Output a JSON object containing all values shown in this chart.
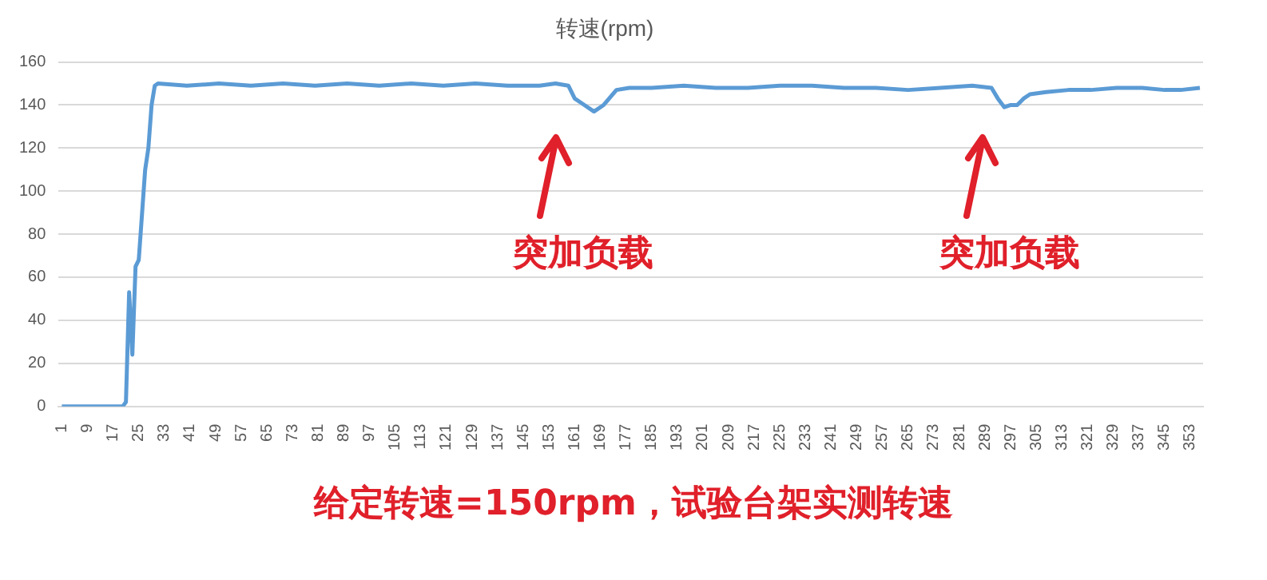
{
  "chart_data": {
    "type": "line",
    "title": "转速(rpm)",
    "x": [
      1,
      20,
      21,
      22,
      23,
      24,
      25,
      27,
      28,
      29,
      30,
      31,
      40,
      50,
      60,
      70,
      80,
      90,
      100,
      110,
      120,
      130,
      140,
      150,
      155,
      159,
      161,
      163,
      167,
      170,
      174,
      178,
      185,
      195,
      205,
      215,
      225,
      235,
      245,
      255,
      265,
      275,
      285,
      291,
      293,
      295,
      297,
      299,
      301,
      303,
      308,
      315,
      322,
      330,
      338,
      345,
      350,
      356
    ],
    "series": [
      {
        "color": "#5b9bd5",
        "values": [
          0,
          0,
          2,
          53,
          24,
          65,
          68,
          110,
          120,
          140,
          149,
          150,
          149,
          150,
          149,
          150,
          149,
          150,
          149,
          150,
          149,
          150,
          149,
          149,
          150,
          149,
          143,
          141,
          137,
          140,
          147,
          148,
          148,
          149,
          148,
          148,
          149,
          149,
          148,
          148,
          147,
          148,
          149,
          148,
          143,
          139,
          140,
          140,
          143,
          145,
          146,
          147,
          147,
          148,
          148,
          147,
          147,
          148
        ]
      }
    ],
    "xlim": [
      0,
      357
    ],
    "ylim": [
      0,
      160
    ],
    "yticks": [
      0,
      20,
      40,
      60,
      80,
      100,
      120,
      140,
      160
    ],
    "xticks": [
      1,
      9,
      17,
      25,
      33,
      41,
      49,
      57,
      65,
      73,
      81,
      89,
      97,
      105,
      113,
      121,
      129,
      137,
      145,
      153,
      161,
      169,
      177,
      185,
      193,
      201,
      209,
      217,
      225,
      233,
      241,
      249,
      257,
      265,
      273,
      281,
      289,
      297,
      305,
      313,
      321,
      329,
      337,
      345,
      353
    ],
    "grid": "y",
    "legend": false,
    "marker": "none",
    "line_style": "solid",
    "annotations": [
      "突加负载",
      "突加负载",
      "给定转速=150rpm，试验台架实测转速"
    ]
  }
}
